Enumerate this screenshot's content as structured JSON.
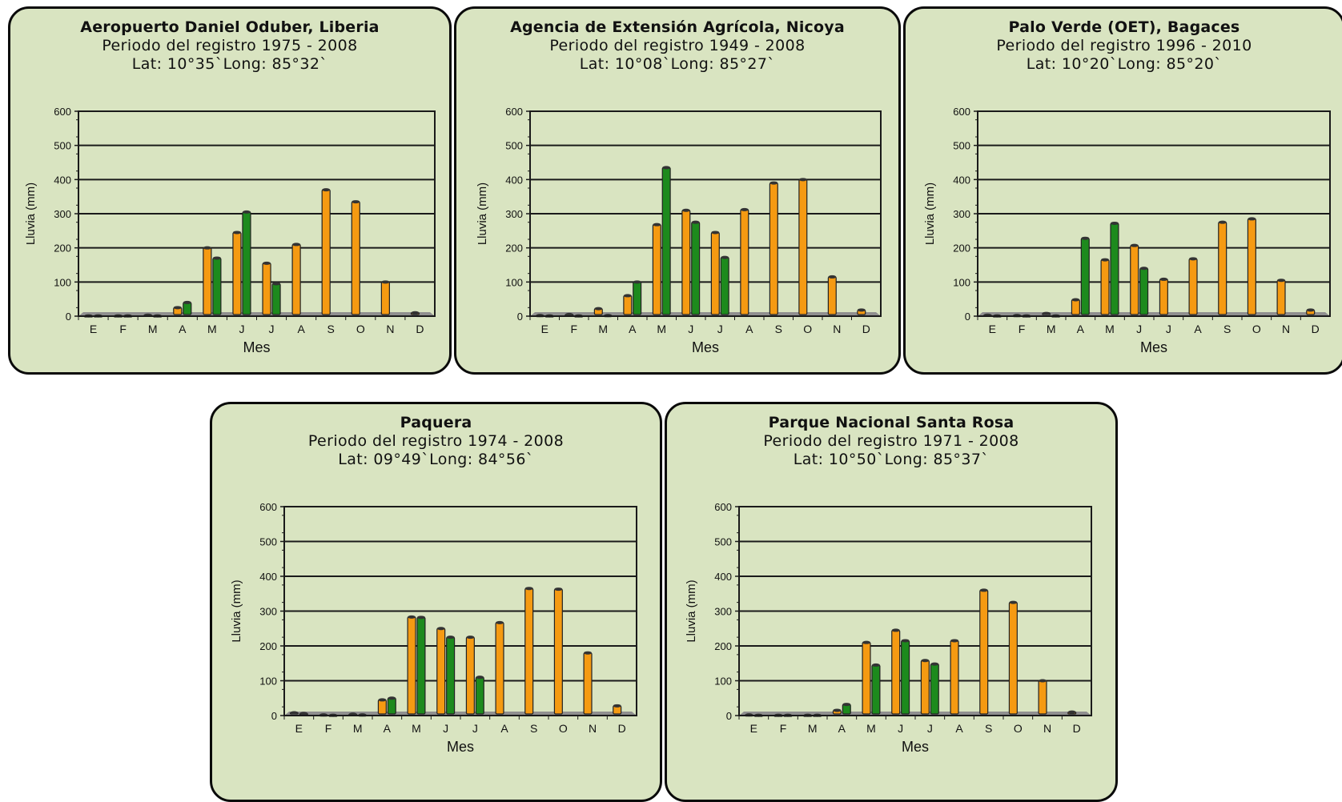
{
  "colors": {
    "panel_bg": "#d9e4c1",
    "series_a": "#f59a12",
    "series_b": "#1d8a1d",
    "grid": "#1a1a1a",
    "floor": "#8f8f8f"
  },
  "chart_data": [
    {
      "type": "bar",
      "title": "Aeropuerto Daniel Oduber, Liberia",
      "subtitle": "Periodo del registro 1975 - 2008",
      "coords": "Lat: 10°35`Long: 85°32`",
      "xlabel": "Mes",
      "ylabel": "Lluvia (mm)",
      "ylim": [
        0,
        600
      ],
      "yticks": [
        "0",
        "100",
        "200",
        "300",
        "400",
        "500",
        "600"
      ],
      "categories": [
        "E",
        "F",
        "M",
        "A",
        "M",
        "J",
        "J",
        "A",
        "S",
        "O",
        "N",
        "D"
      ],
      "series": [
        {
          "values": [
            1,
            1,
            3,
            25,
            200,
            245,
            155,
            210,
            370,
            335,
            100,
            10
          ]
        },
        {
          "values": [
            1,
            1,
            1,
            40,
            170,
            305,
            95,
            0,
            0,
            0,
            0,
            0
          ]
        }
      ]
    },
    {
      "type": "bar",
      "title": "Agencia de Extensión Agrícola, Nicoya",
      "subtitle": "Periodo del registro 1949 - 2008",
      "coords": "Lat: 10°08`Long: 85°27`",
      "xlabel": "Mes",
      "ylabel": "Lluvia (mm)",
      "ylim": [
        0,
        600
      ],
      "yticks": [
        "0",
        "100",
        "200",
        "300",
        "400",
        "500",
        "600"
      ],
      "categories": [
        "E",
        "F",
        "M",
        "A",
        "M",
        "J",
        "J",
        "A",
        "S",
        "O",
        "N",
        "D"
      ],
      "series": [
        {
          "values": [
            2,
            5,
            22,
            60,
            268,
            310,
            245,
            312,
            390,
            400,
            115,
            18
          ]
        },
        {
          "values": [
            1,
            1,
            2,
            100,
            435,
            275,
            172,
            0,
            0,
            0,
            0,
            0
          ]
        }
      ]
    },
    {
      "type": "bar",
      "title": "Palo Verde (OET),  Bagaces",
      "subtitle": "Periodo del registro 1996 - 2010",
      "coords": "Lat: 10°20`Long: 85°20`",
      "xlabel": "Mes",
      "ylabel": "Lluvia (mm)",
      "ylim": [
        0,
        600
      ],
      "yticks": [
        "0",
        "100",
        "200",
        "300",
        "400",
        "500",
        "600"
      ],
      "categories": [
        "E",
        "F",
        "M",
        "A",
        "M",
        "J",
        "J",
        "A",
        "S",
        "O",
        "N",
        "D"
      ],
      "series": [
        {
          "values": [
            3,
            2,
            8,
            48,
            165,
            207,
            108,
            168,
            275,
            285,
            105,
            18
          ]
        },
        {
          "values": [
            1,
            1,
            1,
            228,
            272,
            140,
            0,
            0,
            0,
            0,
            0,
            0
          ]
        }
      ]
    },
    {
      "type": "bar",
      "title": "Paquera",
      "subtitle": "Periodo del registro 1974 - 2008",
      "coords": "Lat: 09°49`Long: 84°56`",
      "xlabel": "Mes",
      "ylabel": "Lluvia (mm)",
      "ylim": [
        0,
        600
      ],
      "yticks": [
        "0",
        "100",
        "200",
        "300",
        "400",
        "500",
        "600"
      ],
      "categories": [
        "E",
        "F",
        "M",
        "A",
        "M",
        "J",
        "J",
        "A",
        "S",
        "O",
        "N",
        "D"
      ],
      "series": [
        {
          "values": [
            8,
            2,
            4,
            45,
            283,
            250,
            225,
            267,
            365,
            363,
            180,
            28
          ]
        },
        {
          "values": [
            6,
            1,
            2,
            50,
            282,
            225,
            110,
            0,
            0,
            0,
            0,
            0
          ]
        }
      ]
    },
    {
      "type": "bar",
      "title": "Parque Nacional Santa Rosa",
      "subtitle": "Periodo del registro 1971 - 2008",
      "coords": "Lat: 10°50`Long: 85°37`",
      "xlabel": "Mes",
      "ylabel": "Lluvia (mm)",
      "ylim": [
        0,
        600
      ],
      "yticks": [
        "0",
        "100",
        "200",
        "300",
        "400",
        "500",
        "600"
      ],
      "categories": [
        "E",
        "F",
        "M",
        "A",
        "M",
        "J",
        "J",
        "A",
        "S",
        "O",
        "N",
        "D"
      ],
      "series": [
        {
          "values": [
            2,
            1,
            1,
            15,
            210,
            245,
            158,
            215,
            360,
            325,
            100,
            10
          ]
        },
        {
          "values": [
            1,
            1,
            1,
            32,
            145,
            215,
            148,
            0,
            0,
            0,
            0,
            0
          ]
        }
      ]
    }
  ]
}
